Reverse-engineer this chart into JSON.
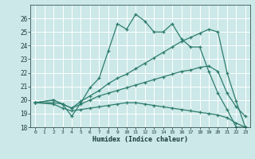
{
  "xlabel": "Humidex (Indice chaleur)",
  "bg_color": "#cce8e8",
  "grid_color": "#ffffff",
  "line_color": "#2e7d6e",
  "xlim": [
    -0.5,
    23.5
  ],
  "ylim": [
    18,
    27
  ],
  "xticks": [
    0,
    1,
    2,
    3,
    4,
    5,
    6,
    7,
    8,
    9,
    10,
    11,
    12,
    13,
    14,
    15,
    16,
    17,
    18,
    19,
    20,
    21,
    22,
    23
  ],
  "yticks": [
    18,
    19,
    20,
    21,
    22,
    23,
    24,
    25,
    26
  ],
  "lines": [
    {
      "x": [
        0,
        2,
        3,
        4,
        5,
        6,
        7,
        8,
        9,
        10,
        11,
        12,
        13,
        14,
        15,
        16,
        17,
        18,
        19,
        20,
        21,
        22,
        23
      ],
      "y": [
        19.8,
        20.0,
        19.7,
        18.8,
        19.8,
        20.9,
        21.6,
        23.6,
        25.6,
        25.2,
        26.3,
        25.8,
        25.0,
        25.0,
        25.6,
        24.5,
        23.9,
        23.9,
        22.1,
        20.5,
        19.3,
        18.0,
        18.0
      ]
    },
    {
      "x": [
        0,
        2,
        3,
        4,
        5,
        6,
        7,
        8,
        9,
        10,
        11,
        12,
        13,
        14,
        15,
        16,
        17,
        18,
        19,
        20,
        21,
        22,
        23
      ],
      "y": [
        19.8,
        20.0,
        19.7,
        19.4,
        19.9,
        20.3,
        20.7,
        21.2,
        21.6,
        21.9,
        22.3,
        22.7,
        23.1,
        23.5,
        23.9,
        24.3,
        24.6,
        24.9,
        25.2,
        25.0,
        22.0,
        19.9,
        18.0
      ]
    },
    {
      "x": [
        0,
        2,
        3,
        4,
        5,
        6,
        7,
        8,
        9,
        10,
        11,
        12,
        13,
        14,
        15,
        16,
        17,
        18,
        19,
        20,
        21,
        22,
        23
      ],
      "y": [
        19.8,
        19.8,
        19.7,
        19.4,
        19.7,
        20.0,
        20.3,
        20.5,
        20.7,
        20.9,
        21.1,
        21.3,
        21.5,
        21.7,
        21.9,
        22.1,
        22.2,
        22.4,
        22.5,
        22.1,
        20.5,
        19.5,
        18.8
      ]
    },
    {
      "x": [
        0,
        2,
        3,
        4,
        5,
        6,
        7,
        8,
        9,
        10,
        11,
        12,
        13,
        14,
        15,
        16,
        17,
        18,
        19,
        20,
        21,
        22,
        23
      ],
      "y": [
        19.8,
        19.7,
        19.4,
        19.2,
        19.3,
        19.4,
        19.5,
        19.6,
        19.7,
        19.8,
        19.8,
        19.7,
        19.6,
        19.5,
        19.4,
        19.3,
        19.2,
        19.1,
        19.0,
        18.9,
        18.7,
        18.3,
        18.0
      ]
    }
  ]
}
